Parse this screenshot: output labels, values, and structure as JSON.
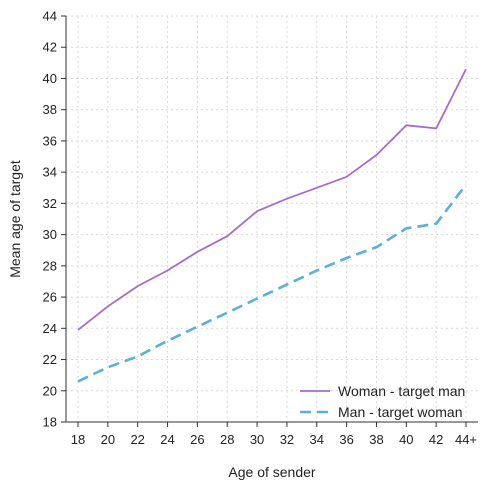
{
  "chart_data": {
    "type": "line",
    "xlabel": "Age of sender",
    "ylabel": "Mean age of target",
    "categories": [
      "18",
      "20",
      "22",
      "24",
      "26",
      "28",
      "30",
      "32",
      "34",
      "36",
      "38",
      "40",
      "42",
      "44+"
    ],
    "ylim": [
      18,
      44
    ],
    "yticks": [
      18,
      20,
      22,
      24,
      26,
      28,
      30,
      32,
      34,
      36,
      38,
      40,
      42,
      44
    ],
    "grid": true,
    "legend_position": "bottom-right",
    "series": [
      {
        "name": "Woman - target man",
        "color": "#a66bd0",
        "style": "solid",
        "values": [
          23.9,
          25.4,
          26.7,
          27.7,
          28.9,
          29.9,
          31.5,
          32.3,
          33.0,
          33.7,
          35.1,
          37.0,
          36.8,
          40.6
        ]
      },
      {
        "name": "Man - target woman",
        "color": "#5aaee0",
        "style": "dashed",
        "values": [
          20.6,
          21.5,
          22.2,
          23.2,
          24.1,
          25.0,
          25.9,
          26.8,
          27.7,
          28.5,
          29.2,
          30.4,
          30.7,
          33.2
        ]
      }
    ]
  }
}
